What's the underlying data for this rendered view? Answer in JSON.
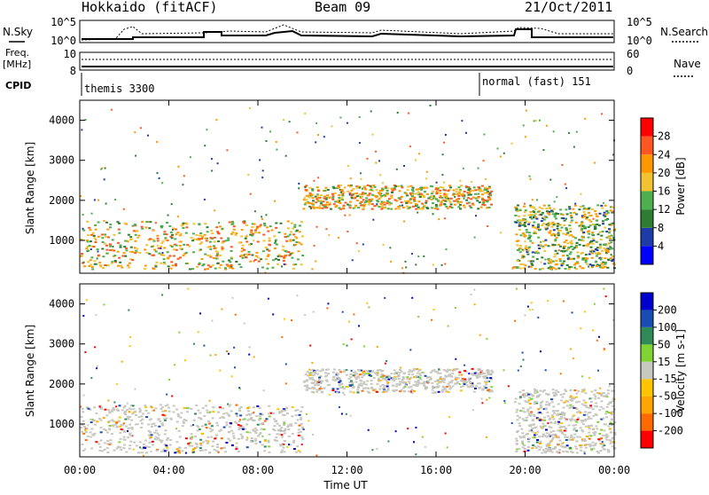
{
  "header": {
    "station": "Hokkaido (fitACF)",
    "beam": "Beam 09",
    "date": "21/Oct/2011"
  },
  "noise_panel": {
    "left_label": "N.Sky",
    "right_label": "N.Search",
    "left_ticks": [
      "10^5",
      "10^0"
    ],
    "right_ticks": [
      "10^5",
      "10^0"
    ]
  },
  "freq_panel": {
    "left_label_1": "Freq.",
    "left_label_2": "[MHz]",
    "left_ticks": [
      "10",
      "8"
    ],
    "right_label": "Nave",
    "right_ticks": [
      "60",
      "0"
    ]
  },
  "cpid_panel": {
    "label": "CPID",
    "modes": [
      {
        "name": "themis 3300"
      },
      {
        "name": "normal (fast) 151"
      }
    ]
  },
  "colors": {
    "power_scale": [
      "#0000ff",
      "#1e3ca8",
      "#2e7d32",
      "#4caf50",
      "#f1c232",
      "#ff9800",
      "#ff5722",
      "#ff0000"
    ],
    "velocity_scale": [
      "#ff0000",
      "#ff6a00",
      "#ffa500",
      "#ffc400",
      "#c8c8c0",
      "#7fd433",
      "#2e8b57",
      "#1a4db3",
      "#0000cc"
    ],
    "ground_scatter": "#c8c8c0"
  },
  "chart_data": [
    {
      "type": "heatmap",
      "panel": "power",
      "title": "",
      "xlabel": "",
      "ylabel": "Slant Range [km]",
      "x_unit": "hours UT",
      "xlim": [
        0,
        24
      ],
      "ylim": [
        180,
        4500
      ],
      "x_tick_labels": [
        "00:00",
        "04:00",
        "08:00",
        "12:00",
        "16:00",
        "20:00",
        "00:00"
      ],
      "y_ticks": [
        1000,
        2000,
        3000,
        4000
      ],
      "colorbar": {
        "label": "Power [dB]",
        "ticks": [
          4,
          8,
          12,
          16,
          20,
          24,
          28
        ],
        "range": [
          0,
          32
        ]
      },
      "features": [
        {
          "description": "main echo band",
          "x_range": [
            0,
            10
          ],
          "y_range": [
            300,
            1500
          ],
          "level": 28
        },
        {
          "description": "evening echo band",
          "x_range": [
            10,
            18.5
          ],
          "y_range": [
            1800,
            2400
          ],
          "level": 28
        },
        {
          "description": "late echo band",
          "x_range": [
            19.5,
            24
          ],
          "y_range": [
            300,
            1900
          ],
          "level": 24
        }
      ]
    },
    {
      "type": "heatmap",
      "panel": "velocity",
      "title": "",
      "xlabel": "Time UT",
      "ylabel": "Slant Range [km]",
      "x_unit": "hours UT",
      "xlim": [
        0,
        24
      ],
      "ylim": [
        180,
        4500
      ],
      "x_tick_labels": [
        "00:00",
        "04:00",
        "08:00",
        "12:00",
        "16:00",
        "20:00",
        "00:00"
      ],
      "y_ticks": [
        1000,
        2000,
        3000,
        4000
      ],
      "colorbar": {
        "label": "Velocity [m s-1]",
        "tick_labels": [
          "200",
          "100",
          "50",
          "15",
          "-15",
          "-50",
          "-100",
          "-200"
        ],
        "range": [
          -250,
          250
        ]
      }
    }
  ]
}
